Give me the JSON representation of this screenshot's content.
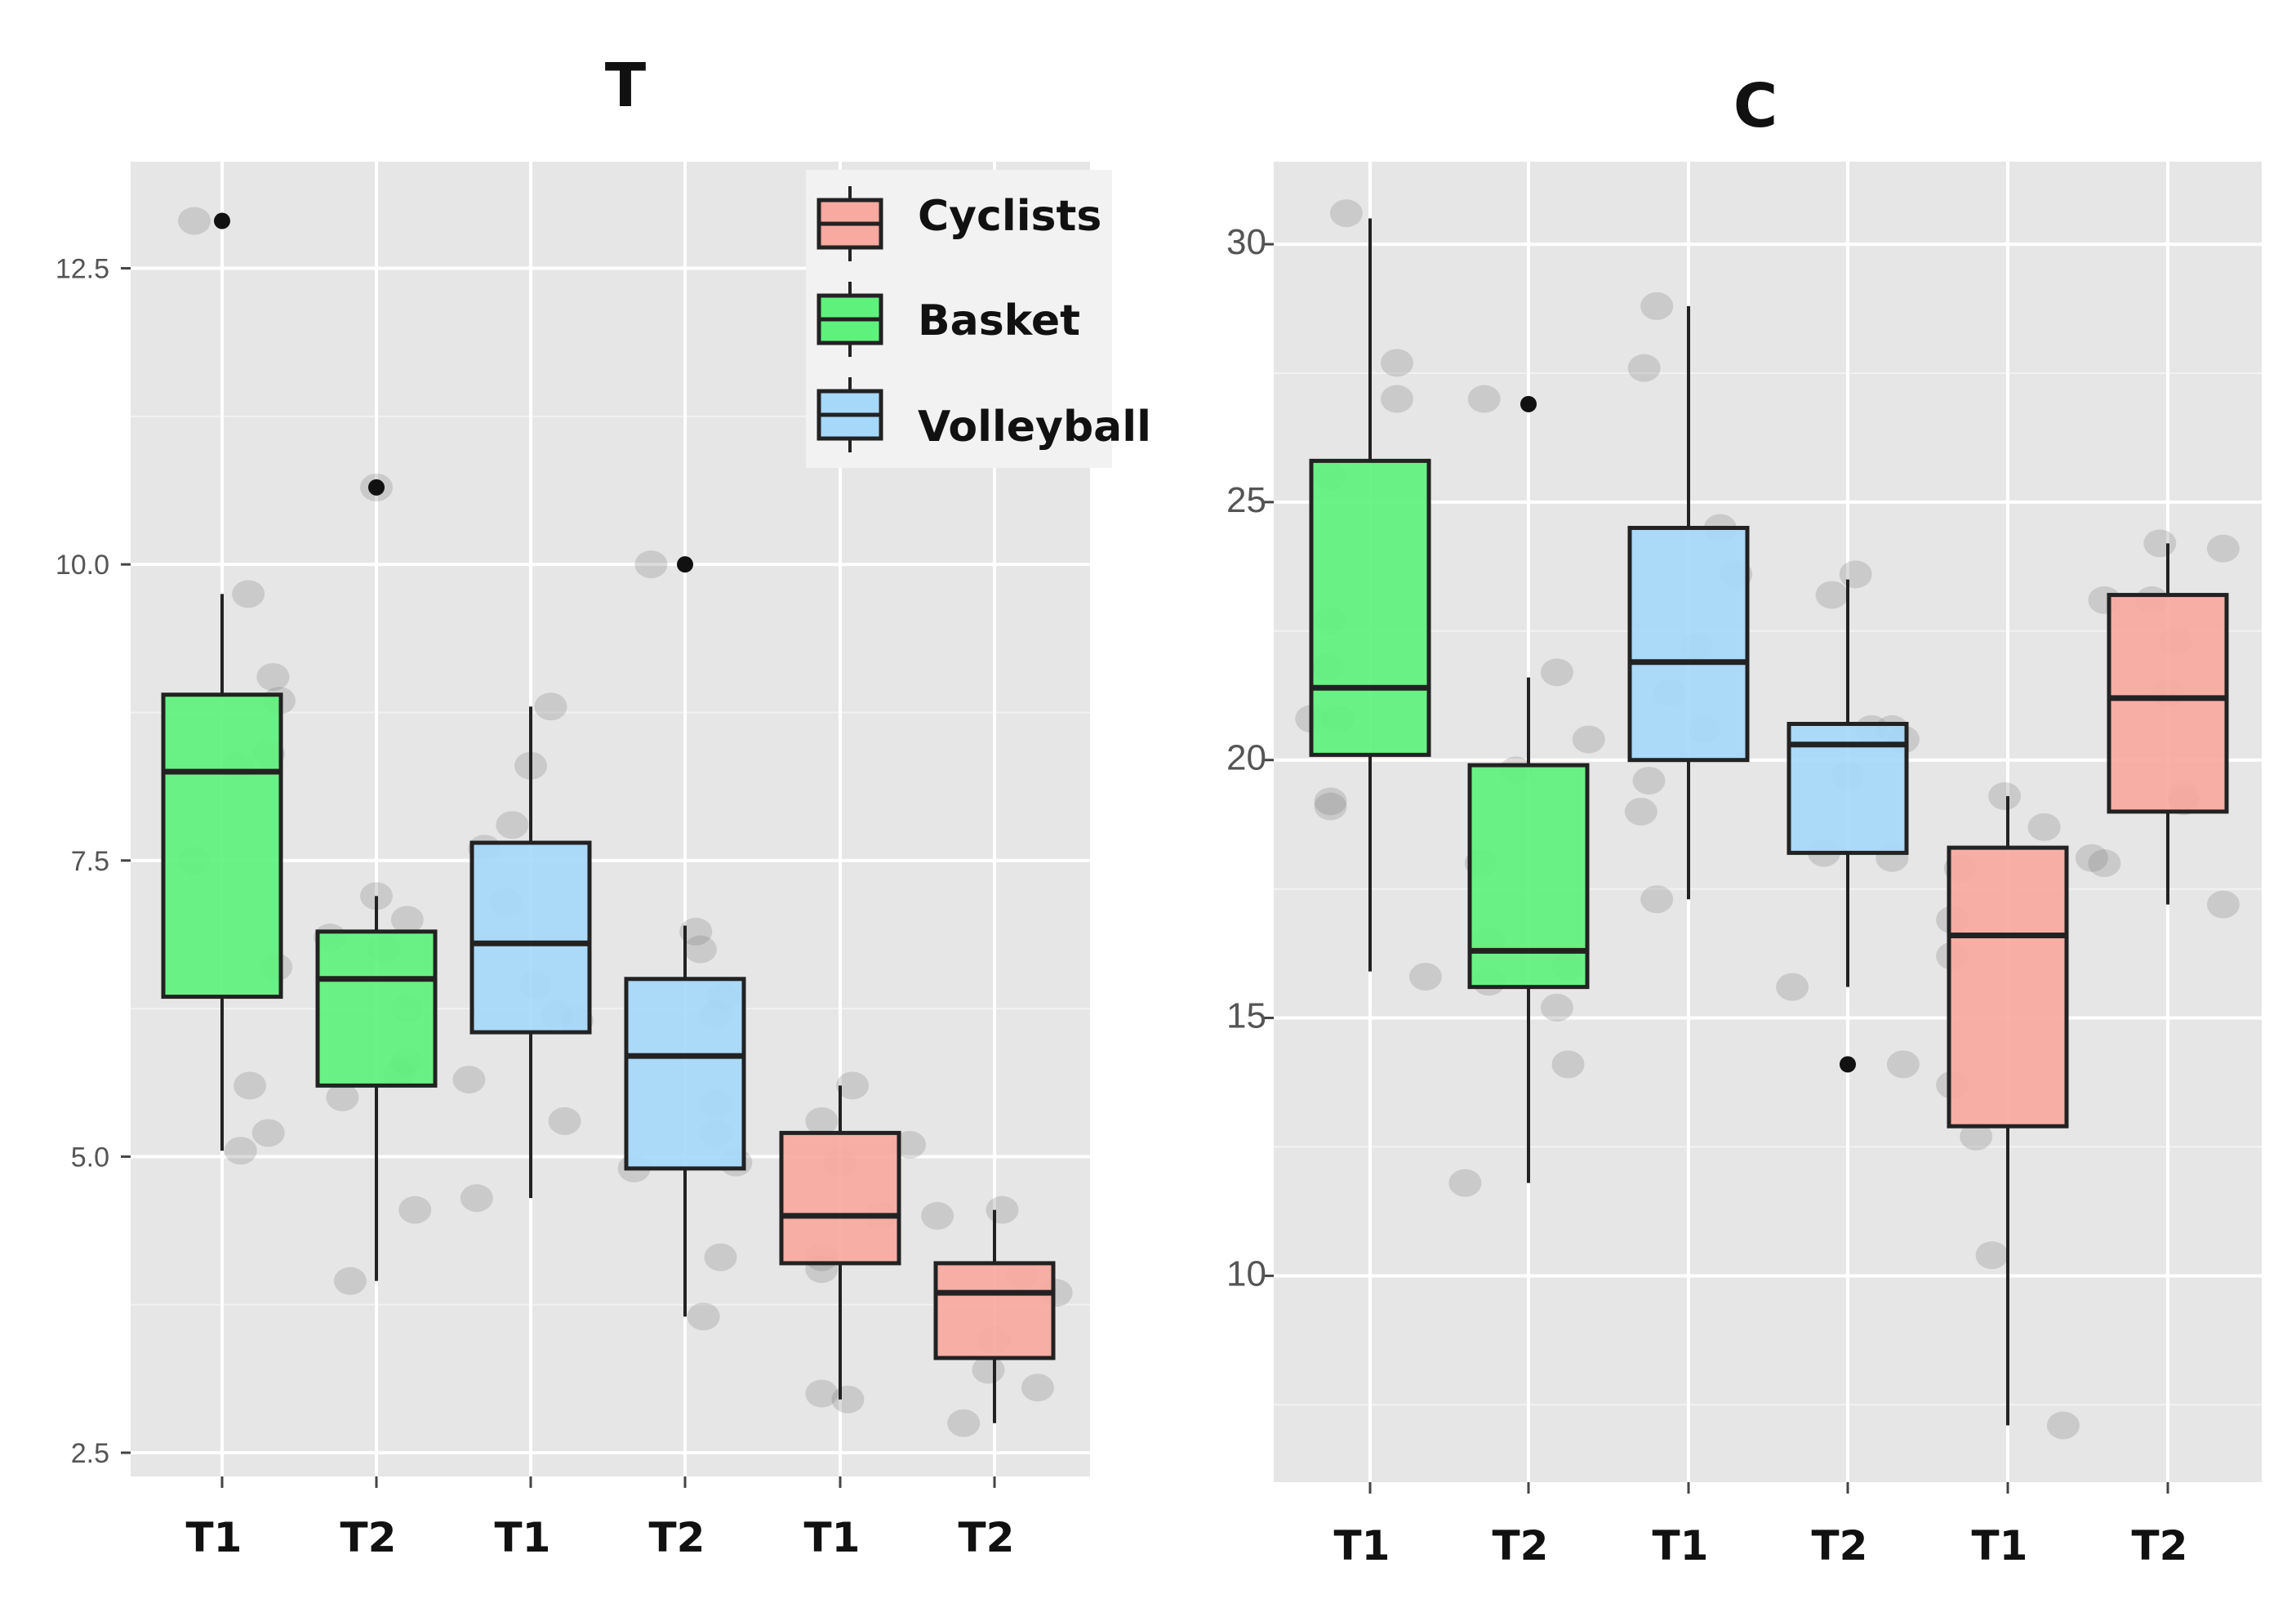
{
  "chart_data": [
    {
      "type": "box",
      "title": "T",
      "xlabel": "",
      "ylabel": "",
      "ylim": [
        2.3,
        13.4
      ],
      "yticks": [
        2.5,
        5.0,
        7.5,
        10.0,
        12.5
      ],
      "ytick_labels": [
        "2.5",
        "5.0",
        "7.5",
        "10.0",
        "12.5"
      ],
      "categories": [
        "T1",
        "T2",
        "T1",
        "T2",
        "T1",
        "T2"
      ],
      "legend": {
        "position": "top-right",
        "entries": [
          {
            "label": "Cyclists",
            "color": "#f8a9a0"
          },
          {
            "label": "Basket",
            "color": "#5ef27d"
          },
          {
            "label": "Volleyball",
            "color": "#a6d8fa"
          }
        ]
      },
      "boxes": [
        {
          "label": "T1",
          "group": "Basket",
          "color": "#5ef27d",
          "whisker_low": 5.05,
          "q1": 6.35,
          "median": 8.25,
          "q3": 8.9,
          "whisker_high": 9.75,
          "outliers": [
            12.9
          ]
        },
        {
          "label": "T2",
          "group": "Basket",
          "color": "#5ef27d",
          "whisker_low": 3.95,
          "q1": 5.6,
          "median": 6.5,
          "q3": 6.9,
          "whisker_high": 7.2,
          "outliers": [
            10.65
          ]
        },
        {
          "label": "T1",
          "group": "Volleyball",
          "color": "#a6d8fa",
          "whisker_low": 4.65,
          "q1": 6.05,
          "median": 6.8,
          "q3": 7.65,
          "whisker_high": 8.8,
          "outliers": []
        },
        {
          "label": "T2",
          "group": "Volleyball",
          "color": "#a6d8fa",
          "whisker_low": 3.65,
          "q1": 4.9,
          "median": 5.85,
          "q3": 6.5,
          "whisker_high": 6.95,
          "outliers": [
            10.0
          ]
        },
        {
          "label": "T1",
          "group": "Cyclists",
          "color": "#f8a9a0",
          "whisker_low": 2.95,
          "q1": 4.1,
          "median": 4.5,
          "q3": 5.2,
          "whisker_high": 5.6,
          "outliers": []
        },
        {
          "label": "T2",
          "group": "Cyclists",
          "color": "#f8a9a0",
          "whisker_low": 2.75,
          "q1": 3.3,
          "median": 3.85,
          "q3": 4.1,
          "whisker_high": 4.55,
          "outliers": []
        }
      ],
      "points": [
        [
          [
            12.9,
            -0.18
          ],
          [
            9.75,
            0.17
          ],
          [
            9.05,
            0.33
          ],
          [
            8.85,
            0.37
          ],
          [
            8.4,
            0.3
          ],
          [
            8.3,
            0.1
          ],
          [
            7.5,
            -0.18
          ],
          [
            6.6,
            0.35
          ],
          [
            5.6,
            0.18
          ],
          [
            5.2,
            0.3
          ],
          [
            5.05,
            0.12
          ]
        ],
        [
          [
            10.65,
            0.0
          ],
          [
            7.2,
            0.0
          ],
          [
            7.0,
            0.2
          ],
          [
            6.85,
            -0.3
          ],
          [
            6.75,
            0.05
          ],
          [
            6.25,
            0.2
          ],
          [
            5.8,
            0.2
          ],
          [
            5.7,
            0.15
          ],
          [
            5.5,
            -0.22
          ],
          [
            4.55,
            0.25
          ],
          [
            3.95,
            -0.17
          ]
        ],
        [
          [
            8.8,
            0.13
          ],
          [
            8.3,
            0.0
          ],
          [
            7.8,
            -0.12
          ],
          [
            7.6,
            -0.3
          ],
          [
            7.15,
            -0.16
          ],
          [
            6.45,
            0.03
          ],
          [
            6.2,
            0.17
          ],
          [
            6.15,
            0.3
          ],
          [
            5.65,
            -0.4
          ],
          [
            5.3,
            0.22
          ],
          [
            4.65,
            -0.35
          ]
        ],
        [
          [
            10.0,
            -0.22
          ],
          [
            6.9,
            0.07
          ],
          [
            6.75,
            0.1
          ],
          [
            6.35,
            0.25
          ],
          [
            6.2,
            0.2
          ],
          [
            5.45,
            0.2
          ],
          [
            5.2,
            0.2
          ],
          [
            4.95,
            0.33
          ],
          [
            4.9,
            -0.33
          ],
          [
            4.15,
            0.23
          ],
          [
            3.65,
            0.12
          ]
        ],
        [
          [
            5.6,
            0.08
          ],
          [
            5.3,
            -0.12
          ],
          [
            5.1,
            0.45
          ],
          [
            4.95,
            0.0
          ],
          [
            4.5,
            0.26
          ],
          [
            4.15,
            -0.12
          ],
          [
            4.05,
            -0.12
          ],
          [
            3.0,
            -0.12
          ],
          [
            2.95,
            0.05
          ]
        ],
        [
          [
            4.55,
            0.05
          ],
          [
            4.5,
            -0.37
          ],
          [
            4.0,
            0.18
          ],
          [
            3.85,
            0.4
          ],
          [
            3.45,
            0.0
          ],
          [
            3.2,
            -0.04
          ],
          [
            3.05,
            0.28
          ],
          [
            2.75,
            -0.2
          ]
        ]
      ]
    },
    {
      "type": "box",
      "title": "C",
      "xlabel": "",
      "ylabel": "",
      "ylim": [
        6.0,
        31.6
      ],
      "yticks": [
        10,
        15,
        20,
        25,
        30
      ],
      "ytick_labels": [
        "10",
        "15",
        "20",
        "25",
        "30"
      ],
      "categories": [
        "T1",
        "T2",
        "T1",
        "T2",
        "T1",
        "T2"
      ],
      "boxes": [
        {
          "label": "T1",
          "group": "Basket",
          "color": "#5ef27d",
          "whisker_low": 15.9,
          "q1": 20.1,
          "median": 21.4,
          "q3": 25.8,
          "whisker_high": 30.5,
          "outliers": []
        },
        {
          "label": "T2",
          "group": "Basket",
          "color": "#5ef27d",
          "whisker_low": 11.8,
          "q1": 15.6,
          "median": 16.3,
          "q3": 19.9,
          "whisker_high": 21.6,
          "outliers": [
            26.9
          ]
        },
        {
          "label": "T1",
          "group": "Volleyball",
          "color": "#a6d8fa",
          "whisker_low": 17.3,
          "q1": 20.0,
          "median": 21.9,
          "q3": 24.5,
          "whisker_high": 28.8,
          "outliers": []
        },
        {
          "label": "T2",
          "group": "Volleyball",
          "color": "#a6d8fa",
          "whisker_low": 15.6,
          "q1": 18.2,
          "median": 20.3,
          "q3": 20.7,
          "whisker_high": 23.5,
          "outliers": [
            14.1
          ]
        },
        {
          "label": "T1",
          "group": "Cyclists",
          "color": "#f8a9a0",
          "whisker_low": 7.1,
          "q1": 12.9,
          "median": 16.6,
          "q3": 18.3,
          "whisker_high": 19.3,
          "outliers": []
        },
        {
          "label": "T2",
          "group": "Cyclists",
          "color": "#f8a9a0",
          "whisker_low": 17.2,
          "q1": 19.0,
          "median": 21.2,
          "q3": 23.2,
          "whisker_high": 24.2,
          "outliers": []
        }
      ],
      "points": [
        [
          [
            30.6,
            -0.15
          ],
          [
            27.7,
            0.17
          ],
          [
            27.0,
            0.17
          ],
          [
            25.5,
            -0.25
          ],
          [
            22.7,
            -0.25
          ],
          [
            21.8,
            -0.27
          ],
          [
            20.8,
            -0.37
          ],
          [
            20.8,
            -0.2
          ],
          [
            19.2,
            -0.25
          ],
          [
            19.1,
            -0.25
          ],
          [
            15.8,
            0.35
          ]
        ],
        [
          [
            27.0,
            -0.28
          ],
          [
            21.7,
            0.18
          ],
          [
            20.4,
            0.38
          ],
          [
            19.8,
            -0.08
          ],
          [
            18.0,
            -0.3
          ],
          [
            16.5,
            -0.25
          ],
          [
            16.0,
            0.25
          ],
          [
            15.7,
            -0.25
          ],
          [
            15.2,
            0.18
          ],
          [
            14.1,
            0.25
          ],
          [
            11.8,
            -0.4
          ]
        ],
        [
          [
            28.8,
            -0.2
          ],
          [
            27.6,
            -0.28
          ],
          [
            24.5,
            0.2
          ],
          [
            23.6,
            0.3
          ],
          [
            22.2,
            0.05
          ],
          [
            21.3,
            -0.12
          ],
          [
            20.6,
            0.1
          ],
          [
            19.6,
            -0.25
          ],
          [
            19.0,
            -0.3
          ],
          [
            17.3,
            -0.2
          ]
        ],
        [
          [
            23.6,
            0.05
          ],
          [
            23.2,
            -0.1
          ],
          [
            20.6,
            0.28
          ],
          [
            20.6,
            0.15
          ],
          [
            20.4,
            0.35
          ],
          [
            19.7,
            0.0
          ],
          [
            18.2,
            -0.15
          ],
          [
            18.1,
            0.28
          ],
          [
            15.6,
            -0.35
          ],
          [
            14.1,
            0.35
          ]
        ],
        [
          [
            19.3,
            -0.02
          ],
          [
            18.7,
            0.23
          ],
          [
            17.9,
            -0.3
          ],
          [
            16.9,
            -0.35
          ],
          [
            16.2,
            -0.35
          ],
          [
            13.7,
            -0.35
          ],
          [
            12.7,
            -0.2
          ],
          [
            10.4,
            -0.1
          ],
          [
            7.1,
            0.35
          ]
        ],
        [
          [
            24.2,
            -0.05
          ],
          [
            24.1,
            0.35
          ],
          [
            23.1,
            -0.4
          ],
          [
            23.1,
            -0.1
          ],
          [
            22.3,
            0.05
          ],
          [
            21.3,
            0.0
          ],
          [
            19.3,
            0.1
          ],
          [
            19.2,
            0.1
          ],
          [
            18.1,
            -0.48
          ],
          [
            18.0,
            -0.4
          ],
          [
            17.2,
            0.35
          ]
        ]
      ]
    }
  ]
}
